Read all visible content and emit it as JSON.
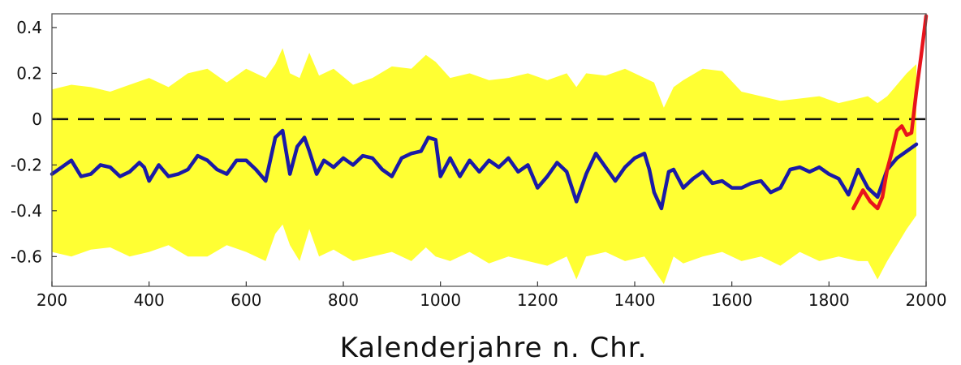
{
  "chart_data": {
    "type": "line",
    "title": "",
    "xlabel": "Kalenderjahre n. Chr.",
    "ylabel": "",
    "xlim": [
      200,
      2000
    ],
    "ylim": [
      -0.73,
      0.46
    ],
    "x_ticks": [
      200,
      400,
      600,
      800,
      1000,
      1200,
      1400,
      1600,
      1800,
      2000
    ],
    "y_ticks": [
      0.4,
      0.2,
      0,
      -0.2,
      -0.4,
      -0.6
    ],
    "y_tick_labels": [
      "0.4",
      "0.2",
      "0",
      "-0.2",
      "-0.4",
      "-0.6"
    ],
    "grid": false,
    "reference_line": {
      "y": 0,
      "style": "dashed",
      "color": "#111111"
    },
    "colors": {
      "band": "#ffff33",
      "reconstruction": "#1a1aa6",
      "instrumental": "#e8141c"
    },
    "uncertainty_band": {
      "x": [
        200,
        240,
        280,
        320,
        360,
        400,
        440,
        480,
        520,
        560,
        600,
        640,
        660,
        675,
        690,
        710,
        730,
        750,
        780,
        820,
        860,
        900,
        940,
        970,
        990,
        1020,
        1060,
        1100,
        1140,
        1180,
        1220,
        1260,
        1280,
        1300,
        1340,
        1380,
        1420,
        1440,
        1460,
        1480,
        1500,
        1540,
        1580,
        1620,
        1660,
        1700,
        1740,
        1780,
        1820,
        1860,
        1880,
        1900,
        1920,
        1940,
        1960,
        1980
      ],
      "upper": [
        0.13,
        0.15,
        0.14,
        0.12,
        0.15,
        0.18,
        0.14,
        0.2,
        0.22,
        0.16,
        0.22,
        0.18,
        0.24,
        0.31,
        0.2,
        0.18,
        0.29,
        0.19,
        0.22,
        0.15,
        0.18,
        0.23,
        0.22,
        0.28,
        0.25,
        0.18,
        0.2,
        0.17,
        0.18,
        0.2,
        0.17,
        0.2,
        0.14,
        0.2,
        0.19,
        0.22,
        0.18,
        0.16,
        0.05,
        0.14,
        0.17,
        0.22,
        0.21,
        0.12,
        0.1,
        0.08,
        0.09,
        0.1,
        0.07,
        0.09,
        0.1,
        0.07,
        0.1,
        0.15,
        0.2,
        0.24
      ],
      "lower": [
        -0.58,
        -0.6,
        -0.57,
        -0.56,
        -0.6,
        -0.58,
        -0.55,
        -0.6,
        -0.6,
        -0.55,
        -0.58,
        -0.62,
        -0.5,
        -0.46,
        -0.55,
        -0.62,
        -0.48,
        -0.6,
        -0.57,
        -0.62,
        -0.6,
        -0.58,
        -0.62,
        -0.56,
        -0.6,
        -0.62,
        -0.58,
        -0.63,
        -0.6,
        -0.62,
        -0.64,
        -0.6,
        -0.7,
        -0.6,
        -0.58,
        -0.62,
        -0.6,
        -0.66,
        -0.72,
        -0.6,
        -0.63,
        -0.6,
        -0.58,
        -0.62,
        -0.6,
        -0.64,
        -0.58,
        -0.62,
        -0.6,
        -0.62,
        -0.62,
        -0.7,
        -0.62,
        -0.55,
        -0.48,
        -0.42
      ]
    },
    "series": [
      {
        "x": [
          200,
          220,
          240,
          260,
          280,
          300,
          320,
          340,
          360,
          380,
          390,
          400,
          420,
          440,
          460,
          480,
          500,
          520,
          540,
          560,
          580,
          600,
          620,
          640,
          660,
          675,
          690,
          705,
          720,
          730,
          745,
          760,
          780,
          800,
          820,
          840,
          860,
          880,
          900,
          920,
          940,
          960,
          975,
          990,
          1000,
          1020,
          1040,
          1060,
          1080,
          1100,
          1120,
          1140,
          1160,
          1180,
          1200,
          1220,
          1240,
          1260,
          1280,
          1300,
          1320,
          1340,
          1360,
          1380,
          1400,
          1420,
          1430,
          1440,
          1455,
          1470,
          1480,
          1500,
          1520,
          1540,
          1560,
          1580,
          1600,
          1620,
          1640,
          1660,
          1680,
          1700,
          1720,
          1740,
          1760,
          1780,
          1800,
          1820,
          1840,
          1860,
          1880,
          1900,
          1920,
          1940,
          1960,
          1980
        ],
        "values": [
          -0.24,
          -0.21,
          -0.18,
          -0.25,
          -0.24,
          -0.2,
          -0.21,
          -0.25,
          -0.23,
          -0.19,
          -0.21,
          -0.27,
          -0.2,
          -0.25,
          -0.24,
          -0.22,
          -0.16,
          -0.18,
          -0.22,
          -0.24,
          -0.18,
          -0.18,
          -0.22,
          -0.27,
          -0.08,
          -0.05,
          -0.24,
          -0.12,
          -0.08,
          -0.14,
          -0.24,
          -0.18,
          -0.21,
          -0.17,
          -0.2,
          -0.16,
          -0.17,
          -0.22,
          -0.25,
          -0.17,
          -0.15,
          -0.14,
          -0.08,
          -0.09,
          -0.25,
          -0.17,
          -0.25,
          -0.18,
          -0.23,
          -0.18,
          -0.21,
          -0.17,
          -0.23,
          -0.2,
          -0.3,
          -0.25,
          -0.19,
          -0.23,
          -0.36,
          -0.24,
          -0.15,
          -0.21,
          -0.27,
          -0.21,
          -0.17,
          -0.15,
          -0.22,
          -0.32,
          -0.39,
          -0.23,
          -0.22,
          -0.3,
          -0.26,
          -0.23,
          -0.28,
          -0.27,
          -0.3,
          -0.3,
          -0.28,
          -0.27,
          -0.32,
          -0.3,
          -0.22,
          -0.21,
          -0.23,
          -0.21,
          -0.24,
          -0.26,
          -0.33,
          -0.22,
          -0.3,
          -0.34,
          -0.22,
          -0.17,
          -0.14,
          -0.11
        ]
      },
      {
        "x": [
          1850,
          1870,
          1885,
          1900,
          1910,
          1920,
          1930,
          1940,
          1950,
          1960,
          1970,
          1980,
          1990,
          2000
        ],
        "values": [
          -0.39,
          -0.31,
          -0.36,
          -0.39,
          -0.34,
          -0.22,
          -0.14,
          -0.05,
          -0.03,
          -0.07,
          -0.06,
          0.12,
          0.28,
          0.45
        ]
      }
    ]
  }
}
